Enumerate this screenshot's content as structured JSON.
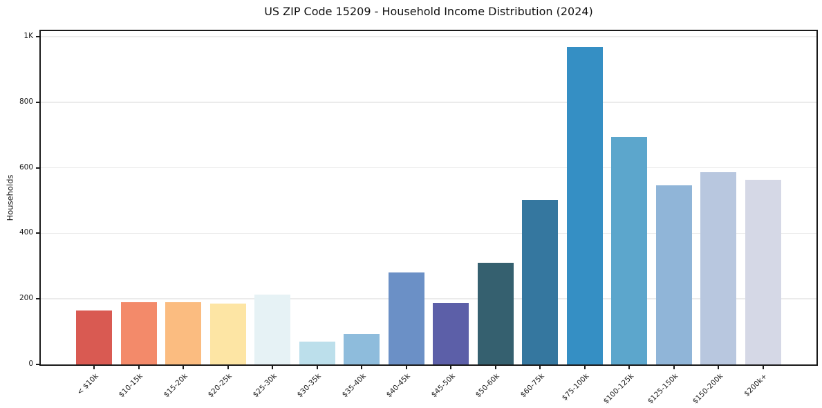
{
  "chart_data": {
    "type": "bar",
    "title": "US ZIP Code 15209 - Household Income Distribution (2024)",
    "xlabel": "",
    "ylabel": "Households",
    "categories": [
      "< $10k",
      "$10-15k",
      "$15-20k",
      "$20-25k",
      "$25-30k",
      "$30-35k",
      "$35-40k",
      "$40-45k",
      "$45-50k",
      "$50-60k",
      "$60-75k",
      "$75-100k",
      "$100-125k",
      "$125-150k",
      "$150-200k",
      "$200k+"
    ],
    "values": [
      165,
      189,
      189,
      186,
      213,
      70,
      92,
      281,
      188,
      310,
      503,
      968,
      695,
      546,
      586,
      564
    ],
    "bar_colors": [
      "#d95a52",
      "#f38a6a",
      "#fbbc80",
      "#fde5a4",
      "#e6f2f5",
      "#bcdfeb",
      "#8ebcdc",
      "#6b90c6",
      "#5c5fa8",
      "#35606f",
      "#35779f",
      "#358fc4",
      "#5ca6cc",
      "#90b5d8",
      "#b8c7df",
      "#d5d8e6"
    ],
    "ylim": [
      0,
      1017
    ],
    "yticks": {
      "values": [
        0,
        200,
        400,
        600,
        800,
        1000
      ],
      "labels": [
        "0",
        "200",
        "400",
        "600",
        "800",
        "1K"
      ]
    },
    "grid": "horizontal-only",
    "grid_color": "#ebebeb",
    "spine_color": "#1a1a1a",
    "text_color": "#1a1a1a",
    "legend": false,
    "xticklabel_rotation_deg": 45
  }
}
